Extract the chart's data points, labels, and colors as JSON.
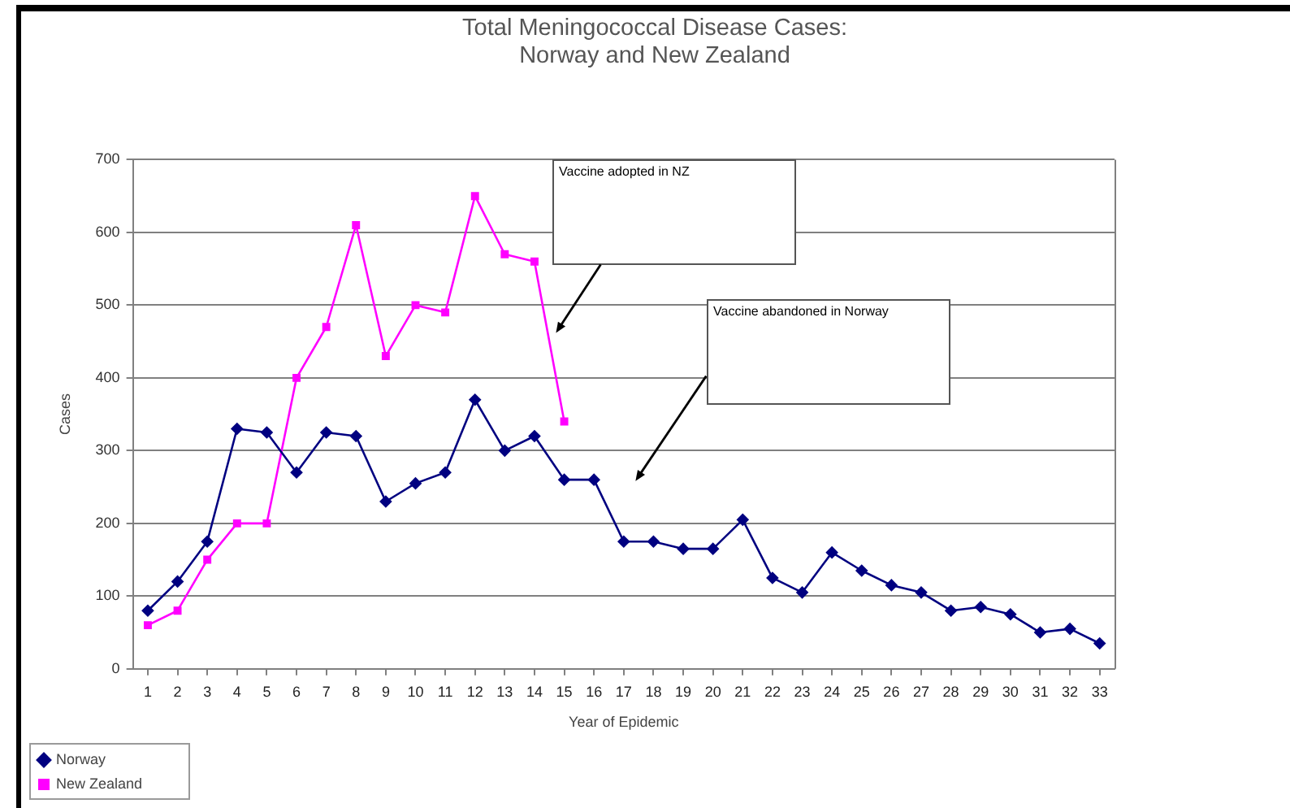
{
  "chart_data": {
    "type": "line",
    "title": "Total Meningococcal Disease Cases:\nNorway and New Zealand",
    "xlabel": "Year of Epidemic",
    "ylabel": "Cases",
    "x": [
      1,
      2,
      3,
      4,
      5,
      6,
      7,
      8,
      9,
      10,
      11,
      12,
      13,
      14,
      15,
      16,
      17,
      18,
      19,
      20,
      21,
      22,
      23,
      24,
      25,
      26,
      27,
      28,
      29,
      30,
      31,
      32,
      33
    ],
    "series": [
      {
        "name": "Norway",
        "color": "#000080",
        "marker": "diamond",
        "values": [
          80,
          120,
          175,
          330,
          325,
          270,
          325,
          320,
          230,
          255,
          270,
          370,
          300,
          320,
          260,
          260,
          175,
          175,
          165,
          165,
          205,
          125,
          105,
          160,
          135,
          115,
          105,
          80,
          85,
          75,
          50,
          55,
          35
        ]
      },
      {
        "name": "New Zealand",
        "color": "#ff00ff",
        "marker": "square",
        "values": [
          60,
          80,
          150,
          200,
          200,
          400,
          470,
          610,
          430,
          500,
          490,
          650,
          570,
          560,
          340,
          null,
          null,
          null,
          null,
          null,
          null,
          null,
          null,
          null,
          null,
          null,
          null,
          null,
          null,
          null,
          null,
          null,
          null
        ]
      }
    ],
    "xlim": [
      0.5,
      33.5
    ],
    "xticks": [
      1,
      2,
      3,
      4,
      5,
      6,
      7,
      8,
      9,
      10,
      11,
      12,
      13,
      14,
      15,
      16,
      17,
      18,
      19,
      20,
      21,
      22,
      23,
      24,
      25,
      26,
      27,
      28,
      29,
      30,
      31,
      32,
      33
    ],
    "ylim": [
      0,
      700
    ],
    "yticks": [
      0,
      100,
      200,
      300,
      400,
      500,
      600,
      700
    ],
    "grid": "y",
    "legend": "bottom left",
    "line_style": "solid",
    "annotations": [
      "Vaccine adopted in NZ",
      "Vaccine abandoned in Norway"
    ]
  }
}
